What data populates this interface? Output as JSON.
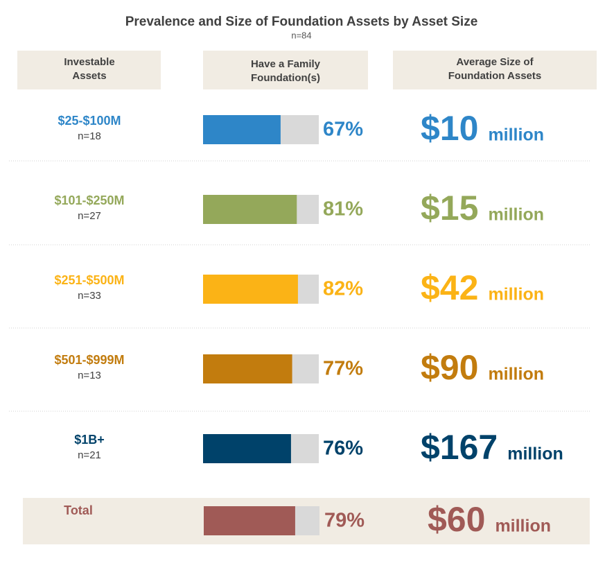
{
  "chart_data": {
    "type": "bar",
    "title": "Prevalence and Size of Foundation Assets by Asset Size",
    "subtitle": "n=84",
    "headers": [
      [
        "Investable",
        "Assets"
      ],
      [
        "Have a Family",
        "Foundation(s)"
      ],
      [
        "Average Size of",
        "Foundation Assets"
      ]
    ],
    "categories": [
      "$25-$100M",
      "$101-$250M",
      "$251-$500M",
      "$501-$999M",
      "$1B+"
    ],
    "sample_sizes": [
      "n=18",
      "n=27",
      "n=33",
      "n=13",
      "n=21"
    ],
    "values": [
      67,
      81,
      82,
      77,
      76
    ],
    "value_labels": [
      "67%",
      "81%",
      "82%",
      "77%",
      "76%"
    ],
    "averages": [
      "$10",
      "$15",
      "$42",
      "$90",
      "$167"
    ],
    "unit": "million",
    "colors": [
      "#2e86c8",
      "#94a85a",
      "#fbb316",
      "#c27c0e",
      "#00426a"
    ],
    "total": {
      "label": "Total",
      "value": 79,
      "value_label": "79%",
      "average": "$60",
      "color": "#a05a56"
    },
    "xlim": [
      0,
      100
    ]
  }
}
